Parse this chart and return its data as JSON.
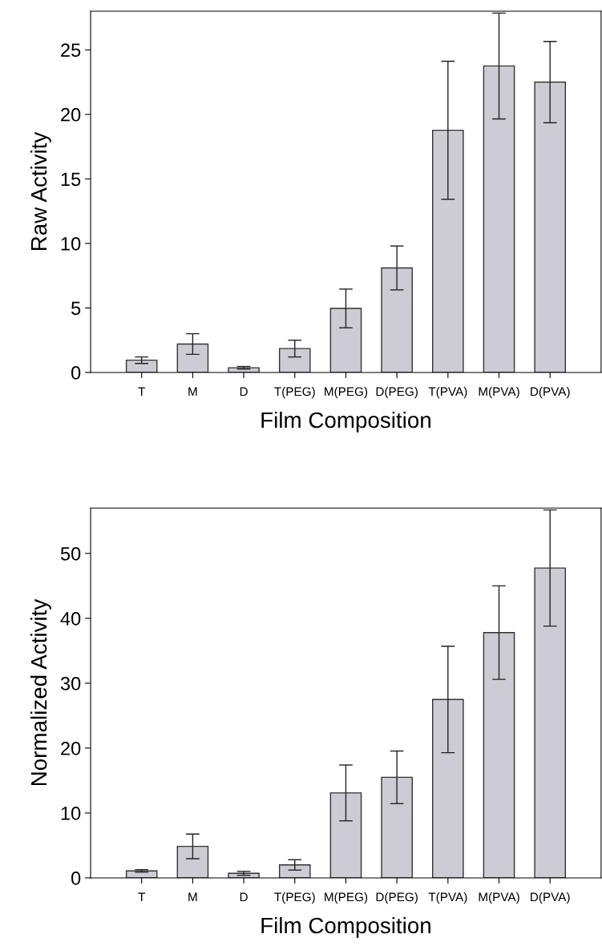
{
  "chart_data": [
    {
      "type": "bar",
      "xlabel": "Film Composition",
      "ylabel": "Raw Activity",
      "categories": [
        "T",
        "M",
        "D",
        "T(PEG)",
        "M(PEG)",
        "D(PEG)",
        "T(PVA)",
        "M(PVA)",
        "D(PVA)"
      ],
      "values": [
        0.95,
        2.2,
        0.36,
        1.85,
        4.96,
        8.1,
        18.77,
        23.75,
        22.5
      ],
      "errors": [
        0.25,
        0.8,
        0.1,
        0.65,
        1.5,
        1.7,
        5.35,
        4.1,
        3.15
      ],
      "color": "#cdcbd3",
      "ylim": [
        0,
        28
      ],
      "yticks": [
        0,
        5,
        10,
        15,
        20,
        25
      ],
      "grid": false
    },
    {
      "type": "bar",
      "xlabel": "Film Composition",
      "ylabel": "Normalized Activity",
      "categories": [
        "T",
        "M",
        "D",
        "T(PEG)",
        "M(PEG)",
        "D(PEG)",
        "T(PVA)",
        "M(PVA)",
        "D(PVA)"
      ],
      "values": [
        1.07,
        4.86,
        0.7,
        2.0,
        13.1,
        15.5,
        27.5,
        37.8,
        47.75
      ],
      "errors": [
        0.2,
        1.9,
        0.3,
        0.8,
        4.3,
        4.05,
        8.2,
        7.2,
        8.95
      ],
      "color": "#cdcbd3",
      "ylim": [
        0,
        57
      ],
      "yticks": [
        0,
        10,
        20,
        30,
        40,
        50
      ],
      "grid": false
    }
  ]
}
